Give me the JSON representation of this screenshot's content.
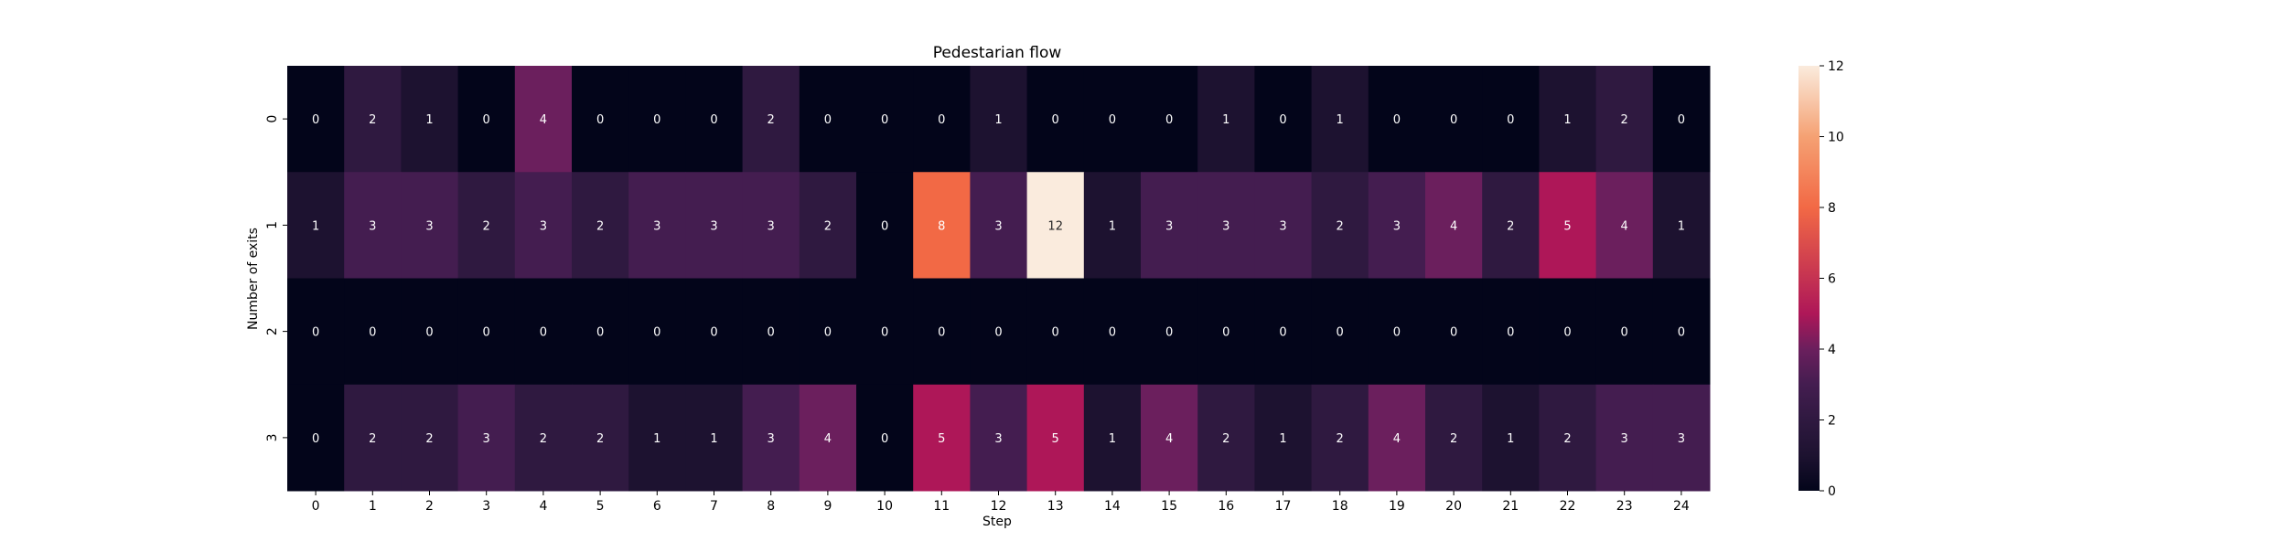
{
  "chart_data": {
    "type": "heatmap",
    "title": "Pedestarian flow",
    "xlabel": "Step",
    "ylabel": "Number of exits",
    "x_categories": [
      "0",
      "1",
      "2",
      "3",
      "4",
      "5",
      "6",
      "7",
      "8",
      "9",
      "10",
      "11",
      "12",
      "13",
      "14",
      "15",
      "16",
      "17",
      "18",
      "19",
      "20",
      "21",
      "22",
      "23",
      "24"
    ],
    "y_categories": [
      "0",
      "1",
      "2",
      "3"
    ],
    "values": [
      [
        0,
        2,
        1,
        0,
        4,
        0,
        0,
        0,
        2,
        0,
        0,
        0,
        1,
        0,
        0,
        0,
        1,
        0,
        1,
        0,
        0,
        0,
        1,
        2,
        0
      ],
      [
        1,
        3,
        3,
        2,
        3,
        2,
        3,
        3,
        3,
        2,
        0,
        8,
        3,
        12,
        1,
        3,
        3,
        3,
        2,
        3,
        4,
        2,
        5,
        4,
        1
      ],
      [
        0,
        0,
        0,
        0,
        0,
        0,
        0,
        0,
        0,
        0,
        0,
        0,
        0,
        0,
        0,
        0,
        0,
        0,
        0,
        0,
        0,
        0,
        0,
        0,
        0
      ],
      [
        0,
        2,
        2,
        3,
        2,
        2,
        1,
        1,
        3,
        4,
        0,
        5,
        3,
        5,
        1,
        4,
        2,
        1,
        2,
        4,
        2,
        1,
        2,
        3,
        3
      ]
    ],
    "colorbar": {
      "min": 0,
      "max": 12,
      "ticks": [
        "0",
        "2",
        "4",
        "6",
        "8",
        "10",
        "12"
      ]
    },
    "colormap": "rocket",
    "annotations": true
  }
}
